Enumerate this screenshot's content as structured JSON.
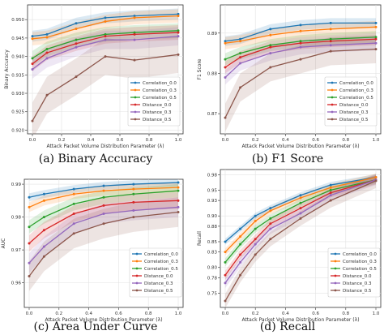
{
  "panels": [
    {
      "key": "a",
      "caption": "(a) Binary Accuracy",
      "chart_data": {
        "type": "line",
        "xlabel": "Attack Packet Volume Distribution Parameter (λ)",
        "ylabel": "Binary Accuracy",
        "xlim": [
          0,
          1
        ],
        "ylim": [
          0.919,
          0.954
        ],
        "yticks": [
          "0.920",
          "0.925",
          "0.930",
          "0.935",
          "0.940",
          "0.945",
          "0.950"
        ],
        "xticks": [
          "0.0",
          "0.2",
          "0.4",
          "0.6",
          "0.8",
          "1.0"
        ],
        "x": [
          0.0,
          0.1,
          0.3,
          0.5,
          0.7,
          1.0
        ],
        "grid": true,
        "legend_position": "lower-right",
        "series": [
          {
            "name": "Correlation_0.0",
            "color": "#1f77b4",
            "values": [
              0.9455,
              0.946,
              0.949,
              0.9505,
              0.951,
              0.9515
            ],
            "band": 0.0015
          },
          {
            "name": "Correlation_0.3",
            "color": "#ff7f0e",
            "values": [
              0.9448,
              0.9452,
              0.9475,
              0.9495,
              0.9505,
              0.951
            ],
            "band": 0.0018
          },
          {
            "name": "Correlation_0.5",
            "color": "#2ca02c",
            "values": [
              0.9395,
              0.942,
              0.9445,
              0.946,
              0.9465,
              0.947
            ],
            "band": 0.002
          },
          {
            "name": "Distance_0.0",
            "color": "#d62728",
            "values": [
              0.938,
              0.941,
              0.9435,
              0.9455,
              0.946,
              0.9465
            ],
            "band": 0.002
          },
          {
            "name": "Distance_0.3",
            "color": "#9467bd",
            "values": [
              0.9365,
              0.9395,
              0.9425,
              0.9445,
              0.9445,
              0.9455
            ],
            "band": 0.0025
          },
          {
            "name": "Distance_0.5",
            "color": "#8c564b",
            "values": [
              0.9225,
              0.9295,
              0.9345,
              0.94,
              0.939,
              0.9405
            ],
            "band": 0.005
          }
        ]
      }
    },
    {
      "key": "b",
      "caption": "(b) F1 Score",
      "chart_data": {
        "type": "line",
        "xlabel": "Attack Packet Volume Distribution Parameter (λ)",
        "ylabel": "F1 Score",
        "xlim": [
          0,
          1
        ],
        "ylim": [
          0.865,
          0.897
        ],
        "yticks": [
          "0.87",
          "0.88",
          "0.89"
        ],
        "xticks": [
          "0.0",
          "0.2",
          "0.4",
          "0.6",
          "0.8",
          "1.0"
        ],
        "x": [
          0.0,
          0.1,
          0.3,
          0.5,
          0.7,
          1.0
        ],
        "grid": true,
        "legend_position": "lower-right",
        "series": [
          {
            "name": "Correlation_0.0",
            "color": "#1f77b4",
            "values": [
              0.888,
              0.8885,
              0.891,
              0.892,
              0.8925,
              0.8925
            ],
            "band": 0.0012
          },
          {
            "name": "Correlation_0.3",
            "color": "#ff7f0e",
            "values": [
              0.8875,
              0.888,
              0.8895,
              0.8905,
              0.891,
              0.8915
            ],
            "band": 0.0015
          },
          {
            "name": "Correlation_0.5",
            "color": "#2ca02c",
            "values": [
              0.8835,
              0.885,
              0.887,
              0.888,
              0.8885,
              0.889
            ],
            "band": 0.0015
          },
          {
            "name": "Distance_0.0",
            "color": "#d62728",
            "values": [
              0.8815,
              0.884,
              0.8865,
              0.8875,
              0.888,
              0.8885
            ],
            "band": 0.0015
          },
          {
            "name": "Distance_0.3",
            "color": "#9467bd",
            "values": [
              0.879,
              0.8825,
              0.885,
              0.8865,
              0.887,
              0.8875
            ],
            "band": 0.0018
          },
          {
            "name": "Distance_0.5",
            "color": "#8c564b",
            "values": [
              0.869,
              0.8765,
              0.8815,
              0.8835,
              0.8855,
              0.886
            ],
            "band": 0.0035
          }
        ]
      }
    },
    {
      "key": "c",
      "caption": "(c) Area Under Curve",
      "chart_data": {
        "type": "line",
        "xlabel": "Attack Packet Volume Distribution Parameter (λ)",
        "ylabel": "AUC",
        "xlim": [
          0,
          1
        ],
        "ylim": [
          0.9525,
          0.9915
        ],
        "yticks": [
          "0.96",
          "0.97",
          "0.98",
          "0.99"
        ],
        "xticks": [
          "0.0",
          "0.2",
          "0.4",
          "0.6",
          "0.8",
          "1.0"
        ],
        "x": [
          0.0,
          0.1,
          0.3,
          0.5,
          0.7,
          1.0
        ],
        "grid": true,
        "legend_position": "lower-right",
        "series": [
          {
            "name": "Correlation_0.0",
            "color": "#1f77b4",
            "values": [
              0.986,
              0.987,
              0.9885,
              0.9895,
              0.99,
              0.9905
            ],
            "band": 0.0012
          },
          {
            "name": "Correlation_0.3",
            "color": "#ff7f0e",
            "values": [
              0.983,
              0.985,
              0.987,
              0.988,
              0.9885,
              0.989
            ],
            "band": 0.0015
          },
          {
            "name": "Correlation_0.5",
            "color": "#2ca02c",
            "values": [
              0.977,
              0.98,
              0.984,
              0.986,
              0.987,
              0.988
            ],
            "band": 0.002
          },
          {
            "name": "Distance_0.0",
            "color": "#d62728",
            "values": [
              0.972,
              0.976,
              0.981,
              0.9835,
              0.9845,
              0.985
            ],
            "band": 0.0025
          },
          {
            "name": "Distance_0.3",
            "color": "#9467bd",
            "values": [
              0.966,
              0.971,
              0.978,
              0.981,
              0.982,
              0.983
            ],
            "band": 0.003
          },
          {
            "name": "Distance_0.5",
            "color": "#8c564b",
            "values": [
              0.962,
              0.968,
              0.975,
              0.978,
              0.98,
              0.9815
            ],
            "band": 0.0045
          }
        ]
      }
    },
    {
      "key": "d",
      "caption": "(d) Recall",
      "chart_data": {
        "type": "line",
        "xlabel": "Attack Packet Volume Distribution Parameter (λ)",
        "ylabel": "Recall",
        "xlim": [
          0,
          1
        ],
        "ylim": [
          0.7225,
          0.99
        ],
        "yticks": [
          "0.75",
          "0.78",
          "0.80",
          "0.83",
          "0.85",
          "0.88",
          "0.90",
          "0.93",
          "0.95",
          "0.98",
          "1.00"
        ],
        "xticks": [
          "0.0",
          "0.2",
          "0.4",
          "0.6",
          "0.8",
          "1.0"
        ],
        "x": [
          0.0,
          0.1,
          0.2,
          0.3,
          0.5,
          0.7,
          1.0
        ],
        "grid": true,
        "legend_position": "lower-right",
        "series": [
          {
            "name": "Correlation_0.0",
            "color": "#1f77b4",
            "values": [
              0.85,
              0.875,
              0.9,
              0.915,
              0.94,
              0.96,
              0.975
            ],
            "band": 0.006
          },
          {
            "name": "Correlation_0.3",
            "color": "#ff7f0e",
            "values": [
              0.83,
              0.86,
              0.89,
              0.91,
              0.935,
              0.955,
              0.975
            ],
            "band": 0.007
          },
          {
            "name": "Correlation_0.5",
            "color": "#2ca02c",
            "values": [
              0.81,
              0.845,
              0.875,
              0.895,
              0.925,
              0.95,
              0.97
            ],
            "band": 0.008
          },
          {
            "name": "Distance_0.0",
            "color": "#d62728",
            "values": [
              0.785,
              0.825,
              0.855,
              0.885,
              0.915,
              0.945,
              0.97
            ],
            "band": 0.009
          },
          {
            "name": "Distance_0.3",
            "color": "#9467bd",
            "values": [
              0.77,
              0.81,
              0.845,
              0.875,
              0.905,
              0.94,
              0.97
            ],
            "band": 0.01
          },
          {
            "name": "Distance_0.5",
            "color": "#8c564b",
            "values": [
              0.735,
              0.785,
              0.825,
              0.855,
              0.895,
              0.93,
              0.968
            ],
            "band": 0.014
          }
        ]
      }
    }
  ]
}
